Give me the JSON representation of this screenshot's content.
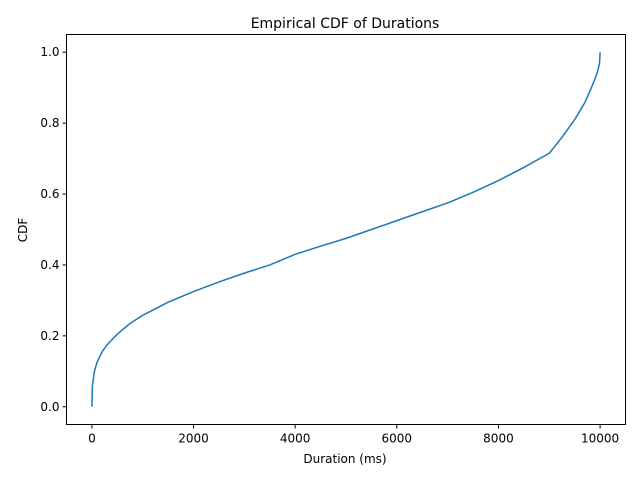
{
  "chart_data": {
    "type": "line",
    "title": "Empirical CDF of Durations",
    "xlabel": "Duration (ms)",
    "ylabel": "CDF",
    "xlim": [
      -500,
      10500
    ],
    "ylim": [
      -0.05,
      1.05
    ],
    "x_ticks": [
      0,
      2000,
      4000,
      6000,
      8000,
      10000
    ],
    "x_tick_labels": [
      "0",
      "2000",
      "4000",
      "6000",
      "8000",
      "10000"
    ],
    "y_ticks": [
      0.0,
      0.2,
      0.4,
      0.6,
      0.8,
      1.0
    ],
    "y_tick_labels": [
      "0.0",
      "0.2",
      "0.4",
      "0.6",
      "0.8",
      "1.0"
    ],
    "grid": false,
    "series": [
      {
        "color": "#1f77b4",
        "x": [
          0,
          10,
          50,
          100,
          200,
          300,
          500,
          750,
          1000,
          1500,
          2000,
          2500,
          3000,
          3500,
          4000,
          4500,
          5000,
          5500,
          6000,
          6500,
          7000,
          7500,
          8000,
          8500,
          9000,
          9250,
          9500,
          9700,
          9800,
          9900,
          9950,
          9990,
          10000
        ],
        "y": [
          0.0,
          0.06,
          0.1,
          0.125,
          0.155,
          0.175,
          0.205,
          0.235,
          0.258,
          0.295,
          0.325,
          0.352,
          0.377,
          0.4,
          0.43,
          0.453,
          0.475,
          0.5,
          0.525,
          0.55,
          0.575,
          0.605,
          0.638,
          0.675,
          0.715,
          0.76,
          0.81,
          0.858,
          0.89,
          0.925,
          0.945,
          0.97,
          1.0
        ]
      }
    ]
  }
}
